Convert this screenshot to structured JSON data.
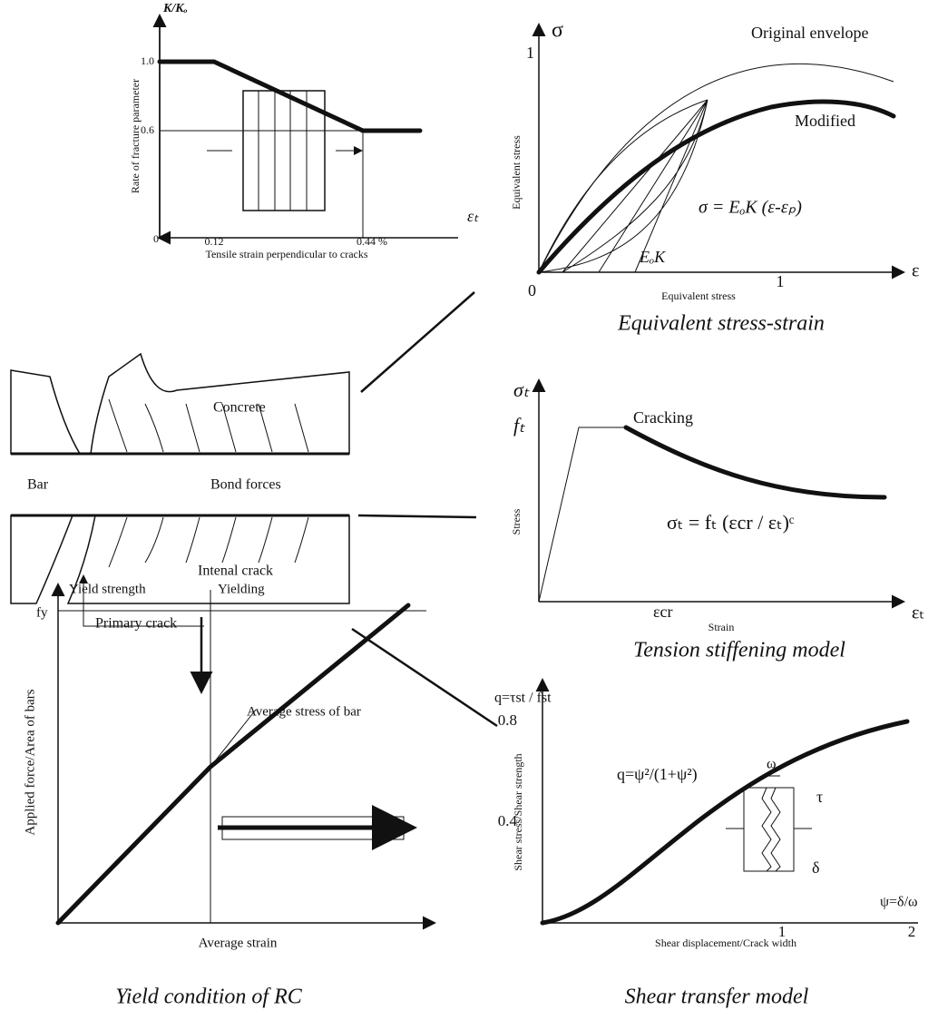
{
  "fracture_panel": {
    "y_label": "K/Kₒ",
    "y_tick_high": "1.0",
    "y_tick_low": "0.6",
    "origin": "0",
    "x_tick_first": "0.12",
    "x_tick_second": "0.44 %",
    "x_symbol": "εₜ",
    "y_title": "Rate of fracture parameter",
    "x_title": "Tensile strain perpendicular to cracks"
  },
  "equivalent_panel": {
    "y_symbol": "σ",
    "y_tick": "1",
    "origin": "0",
    "x_tick": "1",
    "x_symbol": "ε",
    "original": "Original envelope",
    "modified": "Modified",
    "formula": "σ = EₒK (ε-εₚ)",
    "slope": "EₒK",
    "y_title": "Equivalent stress",
    "x_title": "Equivalent stress",
    "caption": "Equivalent stress-strain"
  },
  "tension_panel": {
    "y_symbol": "σₜ",
    "y_tick": "fₜ",
    "cracking": "Cracking",
    "y_title": "Stress",
    "formula": "σₜ = fₜ (εcr / εₜ)ᶜ",
    "x_tick": "εcr",
    "x_title": "Strain",
    "x_symbol": "εₜ",
    "caption": "Tension stiffening model"
  },
  "bond_diagram": {
    "concrete": "Concrete",
    "bar": "Bar",
    "bond": "Bond forces",
    "internal": "Intenal crack",
    "primary": "Primary crack"
  },
  "yield_panel": {
    "yield_strength": "Yield strength",
    "yielding": "Yielding",
    "y_tick": "fy",
    "y_title": "Applied force/Area of bars",
    "average_stress": "Average stress of bar",
    "x_title": "Average strain",
    "caption": "Yield condition of RC"
  },
  "shear_panel": {
    "y_symbol": "q=τst / fst",
    "y_tick_high": "0.8",
    "y_tick_low": "0.4",
    "x_tick_first": "1",
    "x_tick_second": "2",
    "x_symbol": "ψ=δ/ω",
    "formula": "q=ψ²/(1+ψ²)",
    "omega": "ω",
    "tau": "τ",
    "delta": "δ",
    "y_title": "Shear stress/Shear strength",
    "x_title": "Shear displacement/Crack width",
    "caption": "Shear transfer model"
  }
}
